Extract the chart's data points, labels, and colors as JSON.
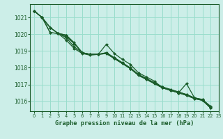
{
  "bg_color": "#cceee8",
  "grid_color": "#99ddcc",
  "line_color": "#1a5c2a",
  "marker_color": "#1a5c2a",
  "xlabel": "Graphe pression niveau de la mer (hPa)",
  "xlim": [
    -0.5,
    23
  ],
  "ylim": [
    1015.4,
    1021.8
  ],
  "yticks": [
    1016,
    1017,
    1018,
    1019,
    1020,
    1021
  ],
  "xticks": [
    0,
    1,
    2,
    3,
    4,
    5,
    6,
    7,
    8,
    9,
    10,
    11,
    12,
    13,
    14,
    15,
    16,
    17,
    18,
    19,
    20,
    21,
    22,
    23
  ],
  "series": [
    [
      1021.4,
      1021.0,
      1020.4,
      1020.05,
      1019.65,
      1019.15,
      1018.85,
      1018.75,
      1018.8,
      1019.4,
      1018.85,
      1018.5,
      1018.2,
      1017.7,
      1017.45,
      1017.2,
      1016.8,
      1016.65,
      1016.5,
      1017.05,
      1016.2,
      1016.05,
      1015.6
    ],
    [
      1021.4,
      1021.0,
      1020.1,
      1020.05,
      1019.85,
      1019.45,
      1018.9,
      1018.8,
      1018.8,
      1018.85,
      1018.55,
      1018.25,
      1017.95,
      1017.55,
      1017.3,
      1017.05,
      1016.8,
      1016.65,
      1016.5,
      1016.35,
      1016.15,
      1016.05,
      1015.6
    ],
    [
      1021.4,
      1021.0,
      1020.1,
      1020.05,
      1019.8,
      1019.25,
      1018.9,
      1018.8,
      1018.8,
      1018.9,
      1018.6,
      1018.3,
      1017.95,
      1017.6,
      1017.35,
      1017.1,
      1016.85,
      1016.7,
      1016.55,
      1016.4,
      1016.2,
      1016.1,
      1015.7
    ],
    [
      1021.4,
      1021.0,
      1020.4,
      1020.05,
      1019.95,
      1019.45,
      1018.9,
      1018.8,
      1018.8,
      1018.85,
      1018.55,
      1018.25,
      1017.95,
      1017.55,
      1017.3,
      1017.05,
      1016.8,
      1016.65,
      1016.5,
      1016.35,
      1016.15,
      1016.05,
      1015.6
    ],
    [
      1021.4,
      1021.0,
      1020.4,
      1020.05,
      1019.95,
      1019.5,
      1018.9,
      1018.8,
      1018.8,
      1018.9,
      1018.6,
      1018.3,
      1018.0,
      1017.6,
      1017.35,
      1017.1,
      1016.85,
      1016.7,
      1016.55,
      1016.4,
      1016.2,
      1016.1,
      1015.65
    ]
  ]
}
